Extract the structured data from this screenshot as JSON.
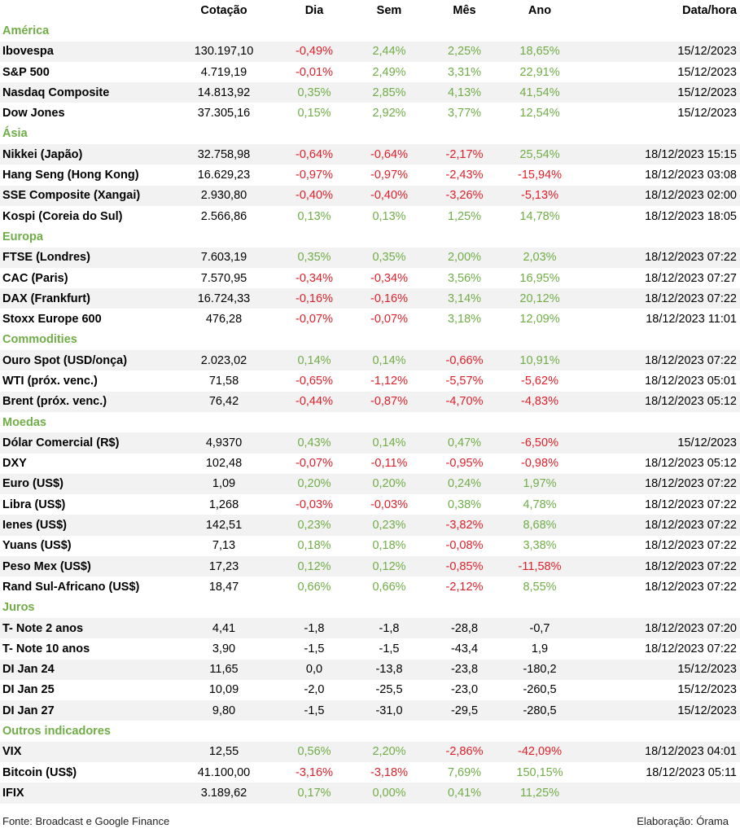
{
  "headers": [
    "",
    "Cotação",
    "Dia",
    "Sem",
    "Mês",
    "Ano",
    "Data/hora"
  ],
  "sections": [
    {
      "title": "América",
      "rows": [
        {
          "name": "Ibovespa",
          "cotacao": "130.197,10",
          "dia": "-0,49%",
          "sem": "2,44%",
          "mes": "2,25%",
          "ano": "18,65%",
          "data": "15/12/2023"
        },
        {
          "name": "S&P 500",
          "cotacao": "4.719,19",
          "dia": "-0,01%",
          "sem": "2,49%",
          "mes": "3,31%",
          "ano": "22,91%",
          "data": "15/12/2023"
        },
        {
          "name": "Nasdaq Composite",
          "cotacao": "14.813,92",
          "dia": "0,35%",
          "sem": "2,85%",
          "mes": "4,13%",
          "ano": "41,54%",
          "data": "15/12/2023"
        },
        {
          "name": "Dow Jones",
          "cotacao": "37.305,16",
          "dia": "0,15%",
          "sem": "2,92%",
          "mes": "3,77%",
          "ano": "12,54%",
          "data": "15/12/2023"
        }
      ]
    },
    {
      "title": "Ásia",
      "rows": [
        {
          "name": "Nikkei (Japão)",
          "cotacao": "32.758,98",
          "dia": "-0,64%",
          "sem": "-0,64%",
          "mes": "-2,17%",
          "ano": "25,54%",
          "data": "18/12/2023 15:15"
        },
        {
          "name": "Hang Seng (Hong Kong)",
          "cotacao": "16.629,23",
          "dia": "-0,97%",
          "sem": "-0,97%",
          "mes": "-2,43%",
          "ano": "-15,94%",
          "data": "18/12/2023 03:08"
        },
        {
          "name": "SSE Composite (Xangai)",
          "cotacao": "2.930,80",
          "dia": "-0,40%",
          "sem": "-0,40%",
          "mes": "-3,26%",
          "ano": "-5,13%",
          "data": "18/12/2023 02:00"
        },
        {
          "name": "Kospi (Coreia do Sul)",
          "cotacao": "2.566,86",
          "dia": "0,13%",
          "sem": "0,13%",
          "mes": "1,25%",
          "ano": "14,78%",
          "data": "18/12/2023 18:05"
        }
      ]
    },
    {
      "title": "Europa",
      "rows": [
        {
          "name": "FTSE (Londres)",
          "cotacao": "7.603,19",
          "dia": "0,35%",
          "sem": "0,35%",
          "mes": "2,00%",
          "ano": "2,03%",
          "data": "18/12/2023 07:22"
        },
        {
          "name": "CAC (Paris)",
          "cotacao": "7.570,95",
          "dia": "-0,34%",
          "sem": "-0,34%",
          "mes": "3,56%",
          "ano": "16,95%",
          "data": "18/12/2023 07:27"
        },
        {
          "name": "DAX (Frankfurt)",
          "cotacao": "16.724,33",
          "dia": "-0,16%",
          "sem": "-0,16%",
          "mes": "3,14%",
          "ano": "20,12%",
          "data": "18/12/2023 07:22"
        },
        {
          "name": "Stoxx Europe 600",
          "cotacao": "476,28",
          "dia": "-0,07%",
          "sem": "-0,07%",
          "mes": "3,18%",
          "ano": "12,09%",
          "data": "18/12/2023 11:01"
        }
      ]
    },
    {
      "title": "Commodities",
      "rows": [
        {
          "name": "Ouro Spot (USD/onça)",
          "cotacao": "2.023,02",
          "dia": "0,14%",
          "sem": "0,14%",
          "mes": "-0,66%",
          "ano": "10,91%",
          "data": "18/12/2023 07:22"
        },
        {
          "name": "WTI (próx. venc.)",
          "cotacao": "71,58",
          "dia": "-0,65%",
          "sem": "-1,12%",
          "mes": "-5,57%",
          "ano": "-5,62%",
          "data": "18/12/2023 05:01"
        },
        {
          "name": "Brent (próx. venc.)",
          "cotacao": "76,42",
          "dia": "-0,44%",
          "sem": "-0,87%",
          "mes": "-4,70%",
          "ano": "-4,83%",
          "data": "18/12/2023 05:12"
        }
      ]
    },
    {
      "title": "Moedas",
      "rows": [
        {
          "name": "Dólar Comercial (R$)",
          "cotacao": "4,9370",
          "dia": "0,43%",
          "sem": "0,14%",
          "mes": "0,47%",
          "ano": "-6,50%",
          "data": "15/12/2023"
        },
        {
          "name": "DXY",
          "cotacao": "102,48",
          "dia": "-0,07%",
          "sem": "-0,11%",
          "mes": "-0,95%",
          "ano": "-0,98%",
          "data": "18/12/2023 05:12"
        },
        {
          "name": "Euro (US$)",
          "cotacao": "1,09",
          "dia": "0,20%",
          "sem": "0,20%",
          "mes": "0,24%",
          "ano": "1,97%",
          "data": "18/12/2023 07:22"
        },
        {
          "name": "Libra (US$)",
          "cotacao": "1,268",
          "dia": "-0,03%",
          "sem": "-0,03%",
          "mes": "0,38%",
          "ano": "4,78%",
          "data": "18/12/2023 07:22"
        },
        {
          "name": "Ienes (US$)",
          "cotacao": "142,51",
          "dia": "0,23%",
          "sem": "0,23%",
          "mes": "-3,82%",
          "ano": "8,68%",
          "data": "18/12/2023 07:22"
        },
        {
          "name": "Yuans (US$)",
          "cotacao": "7,13",
          "dia": "0,18%",
          "sem": "0,18%",
          "mes": "-0,08%",
          "ano": "3,38%",
          "data": "18/12/2023 07:22"
        },
        {
          "name": "Peso Mex (US$)",
          "cotacao": "17,23",
          "dia": "0,12%",
          "sem": "0,12%",
          "mes": "-0,85%",
          "ano": "-11,58%",
          "data": "18/12/2023 07:22"
        },
        {
          "name": "Rand Sul-Africano (US$)",
          "cotacao": "18,47",
          "dia": "0,66%",
          "sem": "0,66%",
          "mes": "-2,12%",
          "ano": "8,55%",
          "data": "18/12/2023 07:22"
        }
      ]
    },
    {
      "title": "Juros",
      "neutral": true,
      "rows": [
        {
          "name": "T- Note 2 anos",
          "cotacao": "4,41",
          "dia": "-1,8",
          "sem": "-1,8",
          "mes": "-28,8",
          "ano": "-0,7",
          "data": "18/12/2023 07:20"
        },
        {
          "name": "T- Note 10 anos",
          "cotacao": "3,90",
          "dia": "-1,5",
          "sem": "-1,5",
          "mes": "-43,4",
          "ano": "1,9",
          "data": "18/12/2023 07:22"
        },
        {
          "name": "DI Jan 24",
          "cotacao": "11,65",
          "dia": "0,0",
          "sem": "-13,8",
          "mes": "-23,8",
          "ano": "-180,2",
          "data": "15/12/2023"
        },
        {
          "name": "DI Jan 25",
          "cotacao": "10,09",
          "dia": "-2,0",
          "sem": "-25,5",
          "mes": "-23,0",
          "ano": "-260,5",
          "data": "15/12/2023"
        },
        {
          "name": "DI Jan 27",
          "cotacao": "9,80",
          "dia": "-1,5",
          "sem": "-31,0",
          "mes": "-29,5",
          "ano": "-280,5",
          "data": "15/12/2023"
        }
      ]
    },
    {
      "title": "Outros indicadores",
      "rows": [
        {
          "name": "VIX",
          "cotacao": "12,55",
          "dia": "0,56%",
          "sem": "2,20%",
          "mes": "-2,86%",
          "ano": "-42,09%",
          "data": "18/12/2023 04:01"
        },
        {
          "name": "Bitcoin (US$)",
          "cotacao": "41.100,00",
          "dia": "-3,16%",
          "sem": "-3,18%",
          "mes": "7,69%",
          "ano": "150,15%",
          "data": "18/12/2023 05:11"
        },
        {
          "name": "IFIX",
          "cotacao": "3.189,62",
          "dia": "0,17%",
          "sem": "0,00%",
          "mes": "0,41%",
          "ano": "11,25%",
          "data": ""
        }
      ]
    }
  ],
  "footer": {
    "source": "Fonte: Broadcast e Google Finance",
    "elaboration": "Elaboração: Órama"
  },
  "colors": {
    "positive": "#70ad47",
    "negative": "#e0202a",
    "section": "#70ad47",
    "row_shade": "#f2f2f2"
  }
}
